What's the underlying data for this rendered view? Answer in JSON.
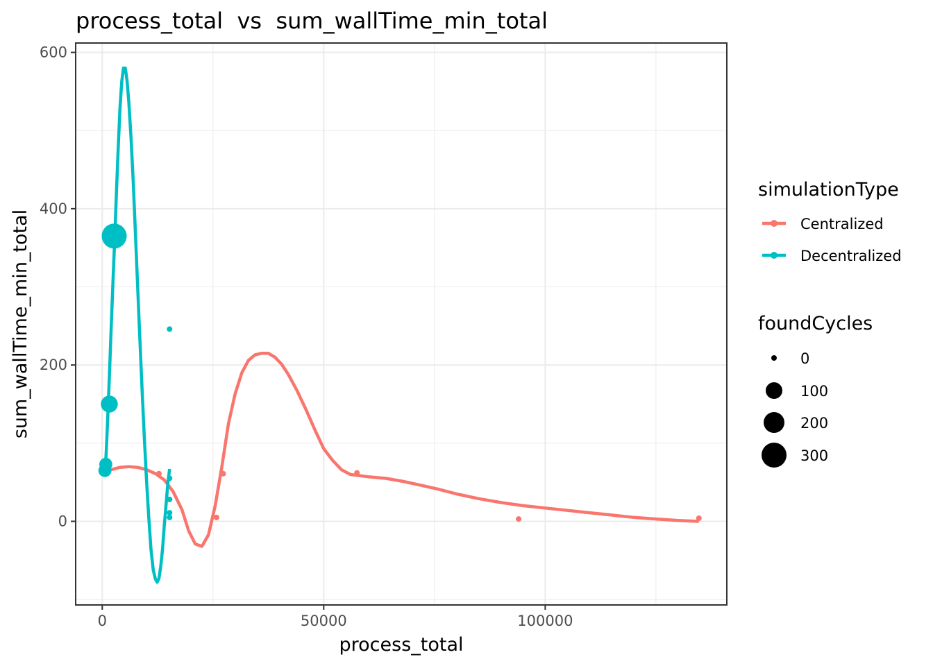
{
  "chart_data": {
    "type": "scatter",
    "title": "process_total  vs  sum_wallTime_min_total",
    "xlabel": "process_total",
    "ylabel": "sum_wallTime_min_total",
    "xlim": [
      -6000,
      141000
    ],
    "ylim": [
      -107,
      612
    ],
    "x_ticks": [
      0,
      50000,
      100000
    ],
    "x_tick_labels": [
      "0",
      "50000",
      "100000"
    ],
    "y_ticks": [
      0,
      200,
      400,
      600
    ],
    "y_tick_labels": [
      "0",
      "200",
      "400",
      "600"
    ],
    "grid": true,
    "legend_position": "right",
    "color_legend": {
      "title": "simulationType",
      "entries": [
        {
          "label": "Centralized",
          "color": "#F8766D"
        },
        {
          "label": "Decentralized",
          "color": "#00BFC4"
        }
      ]
    },
    "size_legend": {
      "title": "foundCycles",
      "entries": [
        {
          "label": "0",
          "value": 0
        },
        {
          "label": "100",
          "value": 100
        },
        {
          "label": "200",
          "value": 200
        },
        {
          "label": "300",
          "value": 300
        }
      ]
    },
    "series": [
      {
        "name": "Centralized",
        "color": "#F8766D",
        "points": [
          {
            "x": 500,
            "y": 61,
            "size": 0
          },
          {
            "x": 12800,
            "y": 61,
            "size": 0
          },
          {
            "x": 25800,
            "y": 5,
            "size": 0
          },
          {
            "x": 27300,
            "y": 61,
            "size": 0
          },
          {
            "x": 57500,
            "y": 62,
            "size": 0
          },
          {
            "x": 94000,
            "y": 3,
            "size": 0
          },
          {
            "x": 134700,
            "y": 4,
            "size": 0
          }
        ],
        "smooth": [
          [
            0,
            60
          ],
          [
            2000,
            66
          ],
          [
            4000,
            69
          ],
          [
            6000,
            70
          ],
          [
            8000,
            69
          ],
          [
            10000,
            66
          ],
          [
            12000,
            61
          ],
          [
            14000,
            53
          ],
          [
            16000,
            38
          ],
          [
            18000,
            15
          ],
          [
            19500,
            -12
          ],
          [
            21000,
            -29
          ],
          [
            22500,
            -32
          ],
          [
            24000,
            -17
          ],
          [
            25500,
            20
          ],
          [
            27000,
            70
          ],
          [
            28500,
            125
          ],
          [
            30000,
            163
          ],
          [
            31500,
            190
          ],
          [
            33000,
            206
          ],
          [
            34500,
            213
          ],
          [
            36000,
            215
          ],
          [
            37500,
            215
          ],
          [
            39000,
            210
          ],
          [
            40500,
            201
          ],
          [
            42000,
            188
          ],
          [
            44000,
            167
          ],
          [
            46000,
            143
          ],
          [
            48000,
            117
          ],
          [
            50000,
            93
          ],
          [
            52000,
            78
          ],
          [
            54000,
            66
          ],
          [
            56000,
            60
          ],
          [
            60000,
            57
          ],
          [
            64000,
            55
          ],
          [
            68000,
            51
          ],
          [
            72000,
            46
          ],
          [
            76000,
            41
          ],
          [
            80000,
            35
          ],
          [
            85000,
            29
          ],
          [
            90000,
            24
          ],
          [
            95000,
            20
          ],
          [
            100000,
            17
          ],
          [
            105000,
            14
          ],
          [
            110000,
            11
          ],
          [
            115000,
            8
          ],
          [
            120000,
            5
          ],
          [
            125000,
            3
          ],
          [
            130000,
            1
          ],
          [
            134700,
            0
          ]
        ]
      },
      {
        "name": "Decentralized",
        "color": "#00BFC4",
        "points": [
          {
            "x": 600,
            "y": 65,
            "size": 70
          },
          {
            "x": 800,
            "y": 73,
            "size": 70
          },
          {
            "x": 1600,
            "y": 150,
            "size": 130
          },
          {
            "x": 2700,
            "y": 365,
            "size": 300
          },
          {
            "x": 15200,
            "y": 246,
            "size": 0
          },
          {
            "x": 15200,
            "y": 55,
            "size": 0
          },
          {
            "x": 15200,
            "y": 28,
            "size": 0
          },
          {
            "x": 15200,
            "y": 11,
            "size": 0
          },
          {
            "x": 15200,
            "y": 5,
            "size": 0
          }
        ],
        "smooth": [
          [
            600,
            60
          ],
          [
            900,
            88
          ],
          [
            1200,
            126
          ],
          [
            1600,
            184
          ],
          [
            2000,
            244
          ],
          [
            2400,
            304
          ],
          [
            2800,
            360
          ],
          [
            3200,
            420
          ],
          [
            3600,
            478
          ],
          [
            4000,
            528
          ],
          [
            4400,
            563
          ],
          [
            4800,
            580
          ],
          [
            5200,
            580
          ],
          [
            5600,
            564
          ],
          [
            6000,
            536
          ],
          [
            6500,
            490
          ],
          [
            7000,
            433
          ],
          [
            7500,
            368
          ],
          [
            8000,
            300
          ],
          [
            8500,
            233
          ],
          [
            9000,
            168
          ],
          [
            9500,
            107
          ],
          [
            10000,
            52
          ],
          [
            10500,
            5
          ],
          [
            11000,
            -36
          ],
          [
            11500,
            -62
          ],
          [
            12000,
            -74
          ],
          [
            12400,
            -78
          ],
          [
            12800,
            -73
          ],
          [
            13200,
            -58
          ],
          [
            13600,
            -36
          ],
          [
            14000,
            -6
          ],
          [
            14400,
            21
          ],
          [
            14800,
            48
          ],
          [
            15200,
            67
          ]
        ]
      }
    ]
  }
}
